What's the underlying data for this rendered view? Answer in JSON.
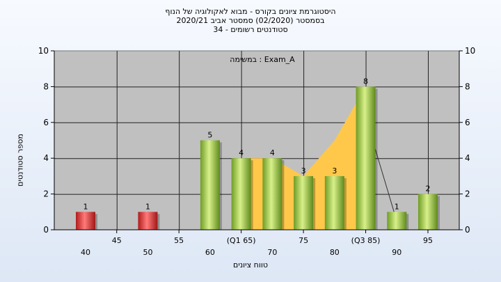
{
  "chart_data": {
    "type": "bar",
    "title_lines": [
      "היסטוגרמת ציונים בקורס - מבוא לאקולוגיה של הנוף",
      "בסמסטר  (02/2020)  סמסטר אביב 2020/21",
      "34 - סטודנטים רשומים"
    ],
    "annotation": "במשימה : Exam_A",
    "xlabel": "טווח ציונים",
    "ylabel": "מספר סטודנטים",
    "ylim": [
      0,
      10
    ],
    "yticks": [
      0,
      2,
      4,
      6,
      8,
      10
    ],
    "x_ticks_upper": [
      "45",
      "55",
      "(Q1 65)",
      "75",
      "(Q3 85)",
      "95"
    ],
    "x_ticks_lower": [
      "40",
      "50",
      "60",
      "70",
      "80",
      "90"
    ],
    "bar_colors": {
      "fail": "#e03030",
      "pass": "#8cbf3c"
    },
    "area_color": "#ffc84a",
    "plot_background": "#c0c0c0",
    "bars": [
      {
        "x": 40,
        "value": 1,
        "label": "1",
        "color": "fail"
      },
      {
        "x": 50,
        "value": 1,
        "label": "1",
        "color": "fail"
      },
      {
        "x": 60,
        "value": 5,
        "label": "5",
        "color": "pass"
      },
      {
        "x": 65,
        "value": 4,
        "label": "4",
        "color": "pass"
      },
      {
        "x": 70,
        "value": 4,
        "label": "4",
        "color": "pass"
      },
      {
        "x": 75,
        "value": 3,
        "label": "3",
        "color": "pass"
      },
      {
        "x": 80,
        "value": 3,
        "label": "3",
        "color": "pass"
      },
      {
        "x": 85,
        "value": 8,
        "label": "8",
        "color": "pass"
      },
      {
        "x": 90,
        "value": 1,
        "label": "1",
        "color": "pass"
      },
      {
        "x": 95,
        "value": 2,
        "label": "2",
        "color": "pass"
      }
    ],
    "iqr_area": [
      {
        "x": 66,
        "y": 4
      },
      {
        "x": 70,
        "y": 4
      },
      {
        "x": 75,
        "y": 3
      },
      {
        "x": 80,
        "y": 5
      },
      {
        "x": 85,
        "y": 8
      }
    ],
    "grid": true,
    "legend": "none"
  }
}
